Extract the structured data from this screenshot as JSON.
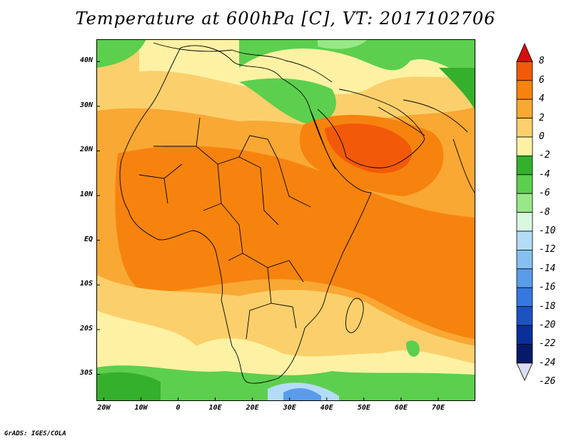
{
  "title": "Temperature at 600hPa [C], VT: 2017102706",
  "credit": "GrADS: IGES/COLA",
  "map": {
    "lon_range": [
      -22,
      80
    ],
    "lat_range": [
      -36,
      45
    ],
    "x_ticks": [
      {
        "lon": -20,
        "label": "20W"
      },
      {
        "lon": -10,
        "label": "10W"
      },
      {
        "lon": 0,
        "label": "0"
      },
      {
        "lon": 10,
        "label": "10E"
      },
      {
        "lon": 20,
        "label": "20E"
      },
      {
        "lon": 30,
        "label": "30E"
      },
      {
        "lon": 40,
        "label": "40E"
      },
      {
        "lon": 50,
        "label": "50E"
      },
      {
        "lon": 60,
        "label": "60E"
      },
      {
        "lon": 70,
        "label": "70E"
      }
    ],
    "y_ticks": [
      {
        "lat": 40,
        "label": "40N"
      },
      {
        "lat": 30,
        "label": "30N"
      },
      {
        "lat": 20,
        "label": "20N"
      },
      {
        "lat": 10,
        "label": "10N"
      },
      {
        "lat": 0,
        "label": "EQ"
      },
      {
        "lat": -10,
        "label": "10S"
      },
      {
        "lat": -20,
        "label": "20S"
      },
      {
        "lat": -30,
        "label": "30S"
      }
    ]
  },
  "colorbar": {
    "labels": [
      "8",
      "6",
      "4",
      "2",
      "0",
      "-2",
      "-4",
      "-6",
      "-8",
      "-10",
      "-12",
      "-14",
      "-16",
      "-18",
      "-20",
      "-22",
      "-24",
      "-26"
    ],
    "colors": [
      "#d4100a",
      "#f25a0a",
      "#f7830f",
      "#f9a834",
      "#fbd06c",
      "#fdf2a4",
      "#34b02c",
      "#5dcf4e",
      "#98e888",
      "#d8f8e0",
      "#b4dcf8",
      "#86c0f0",
      "#5a9cea",
      "#3678de",
      "#1c52c0",
      "#0a2e9a",
      "#061a6a",
      "#dcdcf8"
    ]
  }
}
